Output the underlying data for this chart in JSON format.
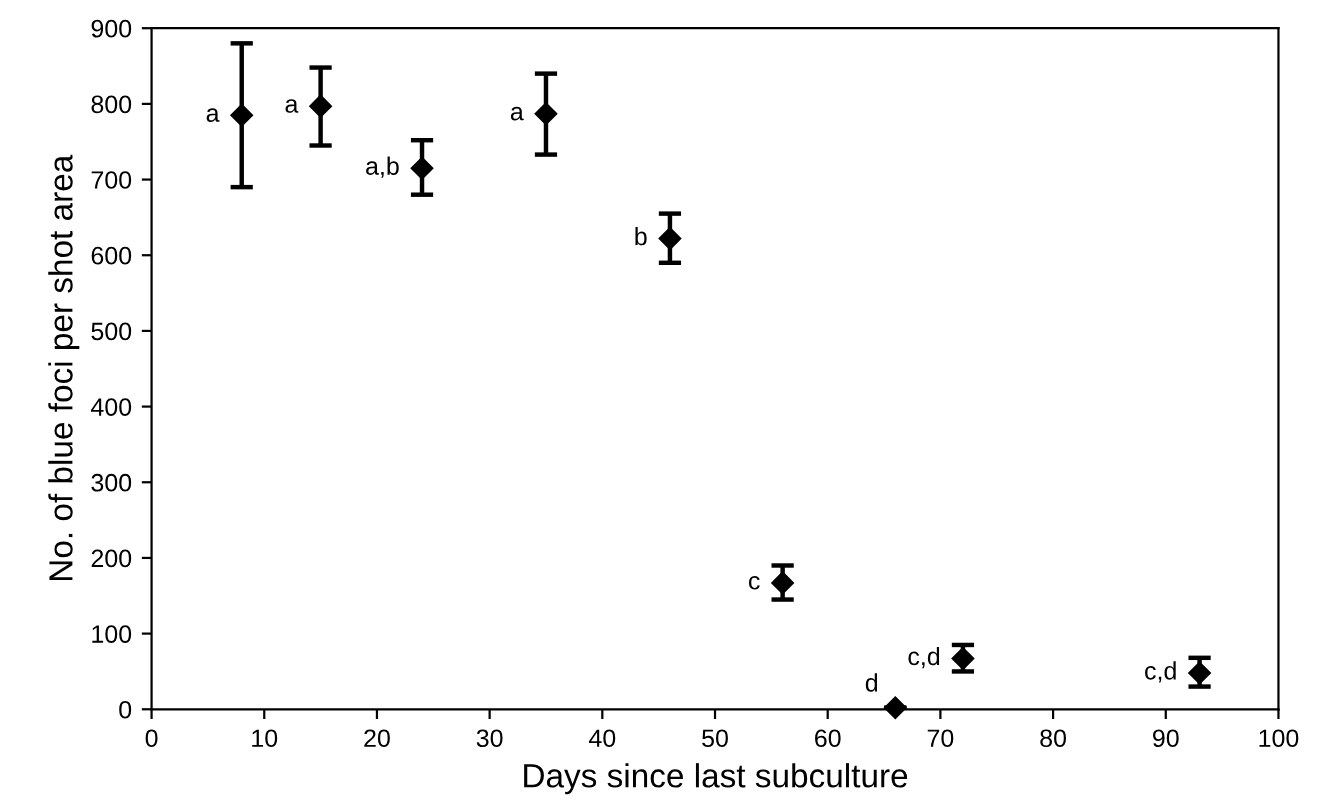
{
  "chart_data": {
    "type": "scatter",
    "xlabel": "Days since last subculture",
    "ylabel": "No. of blue foci per shot area",
    "x": [
      8,
      15,
      24,
      35,
      46,
      56,
      66,
      72,
      93
    ],
    "values": [
      785,
      797,
      715,
      787,
      622,
      167,
      2,
      67,
      48
    ],
    "errors": [
      [
        690,
        880
      ],
      [
        745,
        848
      ],
      [
        680,
        752
      ],
      [
        733,
        840
      ],
      [
        590,
        655
      ],
      [
        145,
        190
      ],
      null,
      [
        50,
        85
      ],
      [
        30,
        68
      ]
    ],
    "color": "#000000",
    "marker": "diamond",
    "grid": false,
    "xlim": [
      0,
      100
    ],
    "xticks": [
      0,
      10,
      20,
      30,
      40,
      50,
      60,
      70,
      80,
      90,
      100
    ],
    "ylim": [
      0,
      900
    ],
    "yticks": [
      0,
      100,
      200,
      300,
      400,
      500,
      600,
      700,
      800,
      900
    ],
    "annotations": [
      {
        "text": "a",
        "x": 8,
        "y": 785
      },
      {
        "text": "a",
        "x": 15,
        "y": 797
      },
      {
        "text": "a,b",
        "x": 24,
        "y": 715
      },
      {
        "text": "a",
        "x": 35,
        "y": 787
      },
      {
        "text": "b",
        "x": 46,
        "y": 622
      },
      {
        "text": "c",
        "x": 56,
        "y": 167
      },
      {
        "text": "d",
        "x": 66,
        "y": 2
      },
      {
        "text": "c,d",
        "x": 72,
        "y": 67
      },
      {
        "text": "c,d",
        "x": 93,
        "y": 48
      }
    ]
  }
}
